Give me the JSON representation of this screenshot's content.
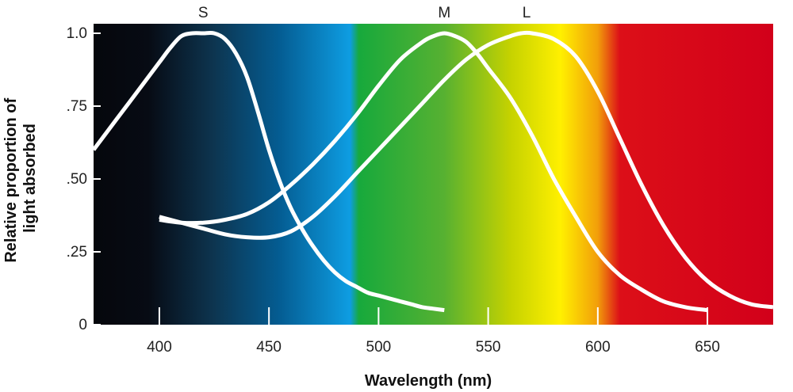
{
  "chart_data": {
    "type": "line",
    "title": "",
    "xlabel": "Wavelength (nm)",
    "ylabel": "Relative proportion of light absorbed",
    "ylabel_lines": [
      "Relative proportion of",
      "light absorbed"
    ],
    "xlim": [
      370,
      680
    ],
    "ylim": [
      0,
      1.0
    ],
    "x_ticks": [
      {
        "value": 400,
        "label": "400"
      },
      {
        "value": 450,
        "label": "450"
      },
      {
        "value": 500,
        "label": "500"
      },
      {
        "value": 550,
        "label": "550"
      },
      {
        "value": 600,
        "label": "600"
      },
      {
        "value": 650,
        "label": "650"
      }
    ],
    "y_ticks": [
      {
        "value": 0,
        "label": "0"
      },
      {
        "value": 0.25,
        "label": ".25"
      },
      {
        "value": 0.5,
        "label": ".50"
      },
      {
        "value": 0.75,
        "label": ".75"
      },
      {
        "value": 1.0,
        "label": "1.0"
      }
    ],
    "grid": false,
    "line_color": "#ffffff",
    "background_spectrum": [
      {
        "wavelength": 370,
        "color": "#05070c"
      },
      {
        "wavelength": 395,
        "color": "#070b14"
      },
      {
        "wavelength": 425,
        "color": "#0d3550"
      },
      {
        "wavelength": 455,
        "color": "#045d93"
      },
      {
        "wavelength": 487,
        "color": "#0e9de2"
      },
      {
        "wavelength": 491,
        "color": "#17a93c"
      },
      {
        "wavelength": 530,
        "color": "#57b131"
      },
      {
        "wavelength": 560,
        "color": "#c5d200"
      },
      {
        "wavelength": 583,
        "color": "#fff000"
      },
      {
        "wavelength": 600,
        "color": "#f29e0a"
      },
      {
        "wavelength": 610,
        "color": "#dc0f18"
      },
      {
        "wavelength": 680,
        "color": "#d2001a"
      }
    ],
    "series": [
      {
        "name": "S",
        "x": [
          370,
          380,
          390,
          400,
          405,
          410,
          415,
          420,
          425,
          430,
          435,
          440,
          445,
          450,
          455,
          460,
          465,
          470,
          475,
          480,
          485,
          490,
          495,
          500,
          505,
          510,
          515,
          520,
          525,
          530
        ],
        "y": [
          0.6,
          0.7,
          0.8,
          0.9,
          0.95,
          0.99,
          1.0,
          1.0,
          1.0,
          0.98,
          0.93,
          0.85,
          0.73,
          0.6,
          0.49,
          0.4,
          0.33,
          0.27,
          0.22,
          0.18,
          0.15,
          0.13,
          0.11,
          0.1,
          0.09,
          0.08,
          0.07,
          0.06,
          0.055,
          0.05
        ]
      },
      {
        "name": "M",
        "x": [
          400,
          410,
          420,
          430,
          440,
          450,
          460,
          470,
          480,
          490,
          500,
          510,
          520,
          525,
          530,
          535,
          540,
          545,
          550,
          560,
          570,
          580,
          590,
          600,
          610,
          620,
          630,
          640,
          650
        ],
        "y": [
          0.36,
          0.35,
          0.35,
          0.36,
          0.38,
          0.42,
          0.48,
          0.55,
          0.63,
          0.72,
          0.82,
          0.91,
          0.97,
          0.99,
          1.0,
          0.99,
          0.97,
          0.93,
          0.88,
          0.78,
          0.65,
          0.5,
          0.37,
          0.25,
          0.17,
          0.12,
          0.08,
          0.06,
          0.05
        ]
      },
      {
        "name": "L",
        "x": [
          400,
          410,
          420,
          430,
          440,
          450,
          460,
          470,
          480,
          490,
          500,
          510,
          520,
          530,
          540,
          550,
          560,
          565,
          570,
          580,
          590,
          600,
          610,
          620,
          630,
          640,
          650,
          660,
          670,
          680
        ],
        "y": [
          0.37,
          0.35,
          0.33,
          0.31,
          0.3,
          0.3,
          0.32,
          0.37,
          0.44,
          0.52,
          0.6,
          0.68,
          0.76,
          0.84,
          0.91,
          0.96,
          0.99,
          1.0,
          1.0,
          0.98,
          0.92,
          0.8,
          0.64,
          0.48,
          0.34,
          0.23,
          0.15,
          0.1,
          0.07,
          0.06
        ]
      }
    ]
  }
}
